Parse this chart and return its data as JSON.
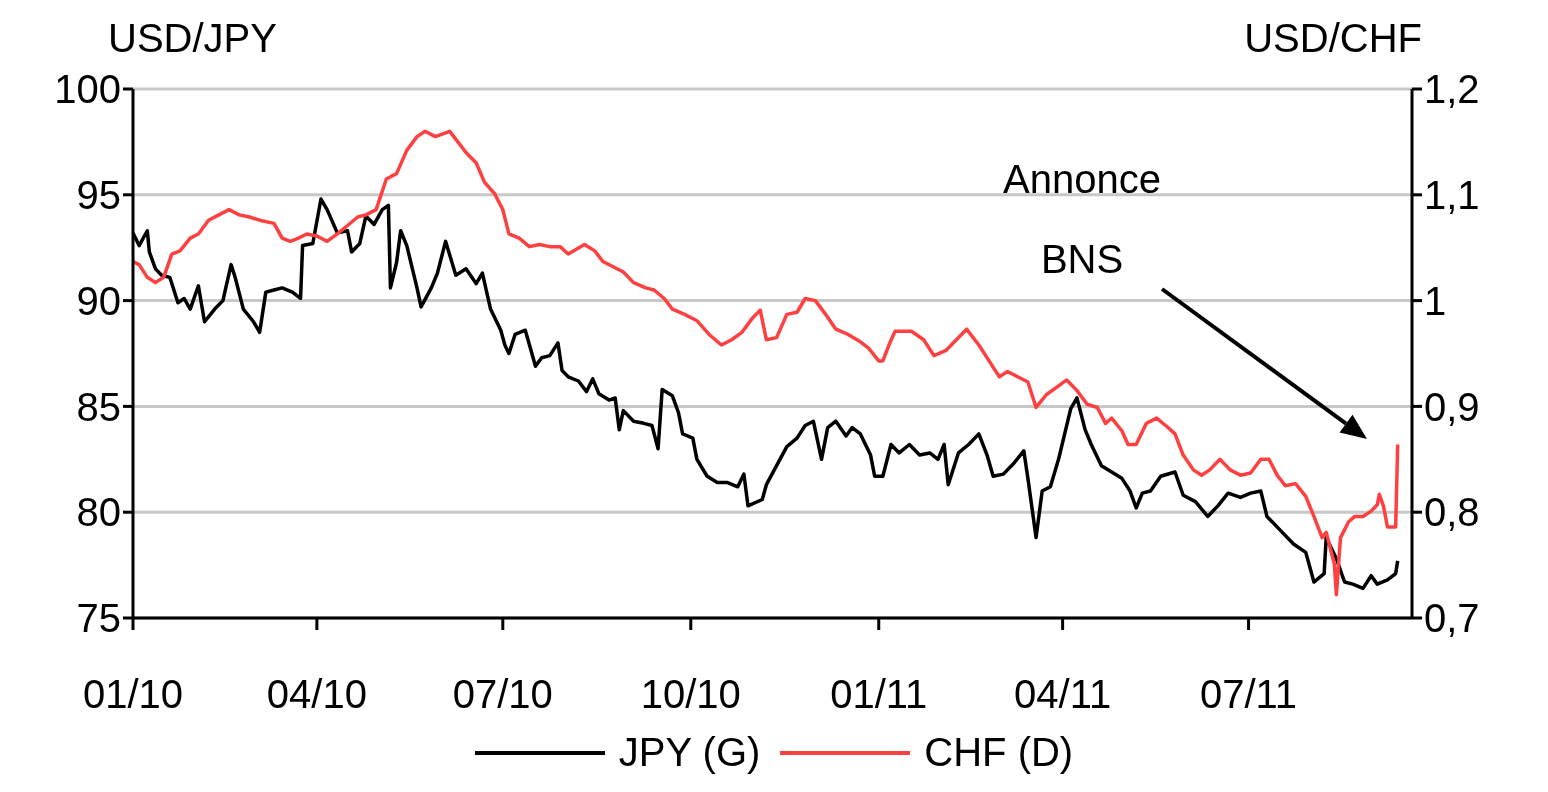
{
  "chart_data": {
    "type": "line",
    "ylabel": "USD/JPY",
    "y2label": "USD/CHF",
    "xlim": [
      "2010-01-01",
      "2011-09-19"
    ],
    "xticks": [
      {
        "value": "2010-01-01",
        "label": "01/10"
      },
      {
        "value": "2010-04-01",
        "label": "04/10"
      },
      {
        "value": "2010-07-01",
        "label": "07/10"
      },
      {
        "value": "2010-10-01",
        "label": "10/10"
      },
      {
        "value": "2011-01-01",
        "label": "01/11"
      },
      {
        "value": "2011-04-01",
        "label": "04/11"
      },
      {
        "value": "2011-07-01",
        "label": "07/11"
      }
    ],
    "ylim": [
      75,
      100
    ],
    "yticks": [
      75,
      80,
      85,
      90,
      95,
      100
    ],
    "y2lim": [
      0.7,
      1.2
    ],
    "y2ticks": [
      {
        "value": 0.7,
        "label": "0,7"
      },
      {
        "value": 0.8,
        "label": "0,8"
      },
      {
        "value": 0.9,
        "label": "0,9"
      },
      {
        "value": 1,
        "label": "1"
      },
      {
        "value": 1.1,
        "label": "1,1"
      },
      {
        "value": 1.2,
        "label": "1,2"
      }
    ],
    "grid": "y",
    "legend": "bottom",
    "marker": "none",
    "line_style": "solid",
    "annotations": [
      "Annonce BNS"
    ],
    "series": [
      {
        "name": "JPY (G)",
        "color": "#000000",
        "x": [
          "2010-01-01",
          "2010-01-04",
          "2010-01-08",
          "2010-01-09",
          "2010-01-12",
          "2010-01-15",
          "2010-01-19",
          "2010-01-23",
          "2010-01-26",
          "2010-01-29",
          "2010-02-02",
          "2010-02-05",
          "2010-02-10",
          "2010-02-14",
          "2010-02-18",
          "2010-02-20",
          "2010-02-24",
          "2010-03-01",
          "2010-03-04",
          "2010-03-07",
          "2010-03-11",
          "2010-03-15",
          "2010-03-20",
          "2010-03-24",
          "2010-03-25",
          "2010-03-30",
          "2010-04-03",
          "2010-04-06",
          "2010-04-11",
          "2010-04-16",
          "2010-04-18",
          "2010-04-22",
          "2010-04-25",
          "2010-04-29",
          "2010-05-03",
          "2010-05-06",
          "2010-05-07",
          "2010-05-10",
          "2010-05-12",
          "2010-05-15",
          "2010-05-20",
          "2010-05-22",
          "2010-05-27",
          "2010-05-30",
          "2010-06-03",
          "2010-06-08",
          "2010-06-13",
          "2010-06-18",
          "2010-06-21",
          "2010-06-25",
          "2010-06-30",
          "2010-07-02",
          "2010-07-04",
          "2010-07-07",
          "2010-07-12",
          "2010-07-17",
          "2010-07-20",
          "2010-07-24",
          "2010-07-28",
          "2010-07-30",
          "2010-08-02",
          "2010-08-07",
          "2010-08-11",
          "2010-08-14",
          "2010-08-17",
          "2010-08-22",
          "2010-08-25",
          "2010-08-27",
          "2010-08-29",
          "2010-09-03",
          "2010-09-08",
          "2010-09-12",
          "2010-09-15",
          "2010-09-17",
          "2010-09-22",
          "2010-09-25",
          "2010-09-27",
          "2010-10-02",
          "2010-10-04",
          "2010-10-09",
          "2010-10-14",
          "2010-10-19",
          "2010-10-24",
          "2010-10-27",
          "2010-10-29",
          "2010-11-05",
          "2010-11-07",
          "2010-11-12",
          "2010-11-17",
          "2010-11-22",
          "2010-11-26",
          "2010-11-30",
          "2010-12-04",
          "2010-12-07",
          "2010-12-11",
          "2010-12-16",
          "2010-12-19",
          "2010-12-23",
          "2010-12-28",
          "2010-12-30",
          "2011-01-03",
          "2011-01-07",
          "2011-01-11",
          "2011-01-16",
          "2011-01-21",
          "2011-01-26",
          "2011-01-30",
          "2011-02-02",
          "2011-02-04",
          "2011-02-09",
          "2011-02-14",
          "2011-02-19",
          "2011-02-23",
          "2011-02-26",
          "2011-03-03",
          "2011-03-08",
          "2011-03-13",
          "2011-03-15",
          "2011-03-19",
          "2011-03-22",
          "2011-03-26",
          "2011-03-30",
          "2011-04-02",
          "2011-04-05",
          "2011-04-08",
          "2011-04-12",
          "2011-04-15",
          "2011-04-20",
          "2011-04-25",
          "2011-04-30",
          "2011-05-04",
          "2011-05-07",
          "2011-05-10",
          "2011-05-14",
          "2011-05-19",
          "2011-05-26",
          "2011-05-30",
          "2011-06-05",
          "2011-06-11",
          "2011-06-16",
          "2011-06-21",
          "2011-06-27",
          "2011-07-02",
          "2011-07-07",
          "2011-07-10",
          "2011-07-16",
          "2011-07-23",
          "2011-07-29",
          "2011-08-02",
          "2011-08-07",
          "2011-08-08",
          "2011-08-13",
          "2011-08-17",
          "2011-08-21",
          "2011-08-26",
          "2011-08-30",
          "2011-09-02",
          "2011-09-07",
          "2011-09-11",
          "2011-09-12"
        ],
        "values": [
          93.2,
          92.6,
          93.3,
          92.3,
          91.5,
          91.2,
          91.1,
          89.9,
          90.1,
          89.6,
          90.7,
          89.0,
          89.6,
          90.0,
          91.7,
          91.1,
          89.6,
          89.0,
          88.5,
          90.4,
          90.5,
          90.6,
          90.4,
          90.1,
          92.6,
          92.7,
          94.8,
          94.3,
          93.2,
          93.3,
          92.3,
          92.7,
          94.0,
          93.6,
          94.3,
          94.5,
          90.6,
          91.8,
          93.3,
          92.6,
          90.6,
          89.7,
          90.6,
          91.3,
          92.8,
          91.2,
          91.5,
          90.8,
          91.3,
          89.6,
          88.6,
          87.9,
          87.5,
          88.4,
          88.6,
          86.9,
          87.3,
          87.4,
          88.0,
          86.7,
          86.4,
          86.2,
          85.7,
          86.3,
          85.6,
          85.3,
          85.4,
          83.9,
          84.8,
          84.3,
          84.2,
          84.1,
          83.0,
          85.8,
          85.5,
          84.7,
          83.7,
          83.5,
          82.5,
          81.7,
          81.4,
          81.4,
          81.2,
          81.8,
          80.3,
          80.6,
          81.3,
          82.2,
          83.1,
          83.5,
          84.1,
          84.3,
          82.5,
          84.0,
          84.3,
          83.6,
          84.0,
          83.7,
          82.7,
          81.7,
          81.7,
          83.2,
          82.8,
          83.2,
          82.7,
          82.8,
          82.5,
          83.2,
          81.3,
          82.8,
          83.2,
          83.7,
          82.7,
          81.7,
          81.8,
          82.3,
          82.9,
          81.6,
          78.8,
          81.0,
          81.2,
          82.5,
          83.7,
          84.9,
          85.4,
          83.9,
          83.2,
          82.2,
          81.9,
          81.6,
          81.0,
          80.2,
          80.9,
          81.0,
          81.7,
          81.9,
          80.8,
          80.5,
          79.8,
          80.3,
          80.9,
          80.7,
          80.9,
          81.0,
          79.8,
          79.2,
          78.5,
          78.1,
          76.7,
          77.1,
          78.8,
          77.8,
          76.7,
          76.6,
          76.4,
          77.0,
          76.6,
          76.8,
          77.1,
          77.7
        ]
      },
      {
        "name": "CHF (D)",
        "color": "#ff4040",
        "axis": "y2",
        "x": [
          "2010-01-01",
          "2010-01-04",
          "2010-01-08",
          "2010-01-12",
          "2010-01-16",
          "2010-01-20",
          "2010-01-24",
          "2010-01-29",
          "2010-02-02",
          "2010-02-07",
          "2010-02-12",
          "2010-02-17",
          "2010-02-22",
          "2010-02-27",
          "2010-03-04",
          "2010-03-11",
          "2010-03-15",
          "2010-03-19",
          "2010-03-23",
          "2010-03-27",
          "2010-04-01",
          "2010-04-06",
          "2010-04-11",
          "2010-04-16",
          "2010-04-21",
          "2010-04-25",
          "2010-04-30",
          "2010-05-05",
          "2010-05-10",
          "2010-05-15",
          "2010-05-20",
          "2010-05-24",
          "2010-05-29",
          "2010-06-05",
          "2010-06-09",
          "2010-06-13",
          "2010-06-18",
          "2010-06-22",
          "2010-06-27",
          "2010-07-01",
          "2010-07-04",
          "2010-07-09",
          "2010-07-14",
          "2010-07-19",
          "2010-07-24",
          "2010-07-29",
          "2010-08-02",
          "2010-08-10",
          "2010-08-15",
          "2010-08-19",
          "2010-08-24",
          "2010-08-29",
          "2010-09-03",
          "2010-09-09",
          "2010-09-13",
          "2010-09-18",
          "2010-09-22",
          "2010-09-28",
          "2010-10-04",
          "2010-10-10",
          "2010-10-16",
          "2010-10-21",
          "2010-10-26",
          "2010-10-31",
          "2010-11-04",
          "2010-11-07",
          "2010-11-12",
          "2010-11-17",
          "2010-11-22",
          "2010-11-26",
          "2010-12-01",
          "2010-12-06",
          "2010-12-11",
          "2010-12-17",
          "2010-12-23",
          "2010-12-27",
          "2011-01-01",
          "2011-01-03",
          "2011-01-06",
          "2011-01-09",
          "2011-01-12",
          "2011-01-17",
          "2011-01-23",
          "2011-01-28",
          "2011-02-03",
          "2011-02-08",
          "2011-02-13",
          "2011-02-19",
          "2011-02-24",
          "2011-03-01",
          "2011-03-05",
          "2011-03-10",
          "2011-03-15",
          "2011-03-19",
          "2011-03-24",
          "2011-03-29",
          "2011-04-03",
          "2011-04-08",
          "2011-04-13",
          "2011-04-18",
          "2011-04-22",
          "2011-04-25",
          "2011-04-30",
          "2011-05-03",
          "2011-05-07",
          "2011-05-12",
          "2011-05-17",
          "2011-05-22",
          "2011-05-26",
          "2011-05-30",
          "2011-06-04",
          "2011-06-08",
          "2011-06-12",
          "2011-06-17",
          "2011-06-22",
          "2011-06-27",
          "2011-07-02",
          "2011-07-07",
          "2011-07-11",
          "2011-07-15",
          "2011-07-19",
          "2011-07-24",
          "2011-07-29",
          "2011-08-02",
          "2011-08-06",
          "2011-08-08",
          "2011-08-12",
          "2011-08-13",
          "2011-08-15",
          "2011-08-19",
          "2011-08-22",
          "2011-08-26",
          "2011-08-30",
          "2011-09-02",
          "2011-09-03",
          "2011-09-05",
          "2011-09-07",
          "2011-09-11",
          "2011-09-12"
        ],
        "values": [
          1.037,
          1.034,
          1.022,
          1.017,
          1.022,
          1.044,
          1.047,
          1.059,
          1.063,
          1.076,
          1.081,
          1.086,
          1.081,
          1.079,
          1.076,
          1.073,
          1.059,
          1.056,
          1.059,
          1.063,
          1.061,
          1.056,
          1.063,
          1.071,
          1.079,
          1.081,
          1.086,
          1.115,
          1.12,
          1.142,
          1.155,
          1.16,
          1.155,
          1.16,
          1.15,
          1.14,
          1.13,
          1.112,
          1.101,
          1.086,
          1.063,
          1.059,
          1.051,
          1.053,
          1.051,
          1.051,
          1.044,
          1.053,
          1.047,
          1.037,
          1.032,
          1.027,
          1.017,
          1.012,
          1.01,
          1.002,
          0.992,
          0.987,
          0.981,
          0.968,
          0.958,
          0.963,
          0.97,
          0.983,
          0.991,
          0.963,
          0.965,
          0.987,
          0.989,
          1.002,
          1.0,
          0.987,
          0.973,
          0.968,
          0.961,
          0.955,
          0.943,
          0.943,
          0.958,
          0.971,
          0.971,
          0.971,
          0.963,
          0.948,
          0.953,
          0.963,
          0.973,
          0.958,
          0.943,
          0.928,
          0.933,
          0.928,
          0.923,
          0.899,
          0.911,
          0.918,
          0.925,
          0.915,
          0.902,
          0.899,
          0.884,
          0.889,
          0.877,
          0.864,
          0.864,
          0.884,
          0.889,
          0.881,
          0.874,
          0.854,
          0.84,
          0.835,
          0.84,
          0.85,
          0.84,
          0.835,
          0.837,
          0.85,
          0.85,
          0.835,
          0.825,
          0.827,
          0.815,
          0.796,
          0.776,
          0.781,
          0.751,
          0.722,
          0.776,
          0.791,
          0.796,
          0.796,
          0.801,
          0.807,
          0.817,
          0.806,
          0.786,
          0.786,
          0.864
        ]
      }
    ]
  }
}
